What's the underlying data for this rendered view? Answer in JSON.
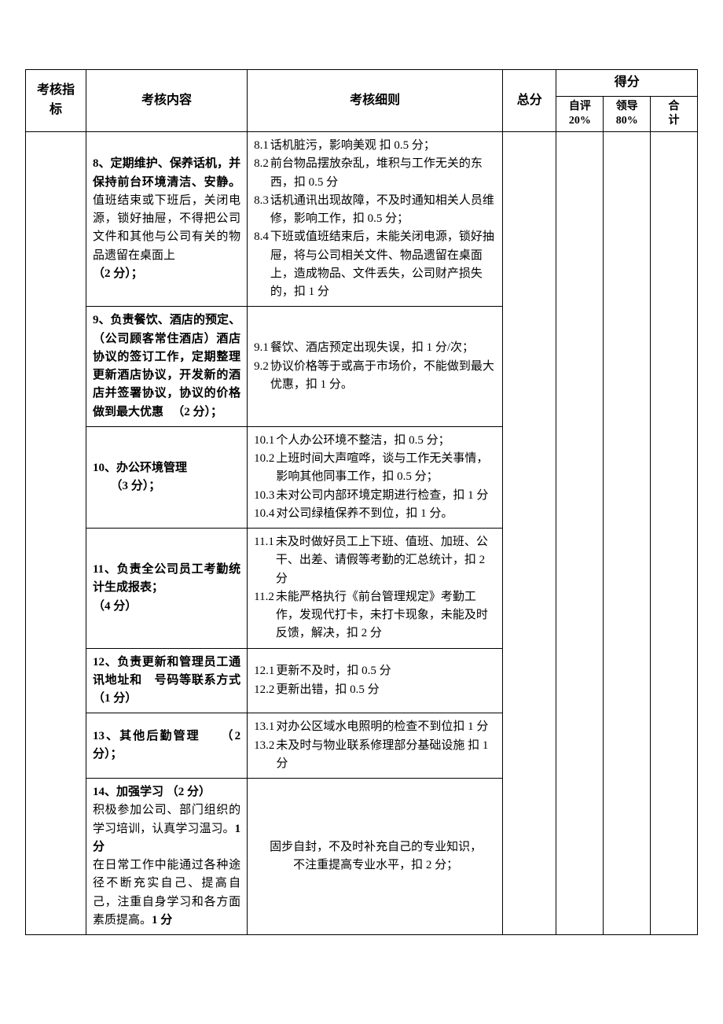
{
  "header": {
    "indicator": "考核指标",
    "content": "考核内容",
    "rules": "考核细则",
    "total": "总分",
    "score": "得分",
    "self": "自评 20%",
    "self_l1": "自评",
    "self_l2": "20%",
    "leader_l1": "领导",
    "leader_l2": "80%",
    "sum_l1": "合",
    "sum_l2": "计"
  },
  "rows": [
    {
      "content_html": "<span class='bold'>8、定期维护、保养话机，并保持前台环境清洁、安静。</span>值班结束或下班后，关闭电源，锁好抽屉，不得把公司文件和其他与公司有关的物品遗留在桌面上<br><span class='bold'>（2 分）；</span>",
      "rules": [
        {
          "n": "8.1",
          "t": "话机脏污，影响美观 扣 0.5 分；"
        },
        {
          "n": "8.2",
          "t": "前台物品摆放杂乱，堆积与工作无关的东西，扣 0.5 分"
        },
        {
          "n": "8.3",
          "t": "话机通讯出现故障，不及时通知相关人员维修，影响工作，扣 0.5 分；"
        },
        {
          "n": "8.4",
          "t": "下班或值班结束后，未能关闭电源，锁好抽屉，将与公司相关文件、物品遗留在桌面上，造成物品、文件丢失，公司财产损失的，扣 1 分"
        }
      ]
    },
    {
      "content_html": "<span class='bold'>9、负责餐饮、酒店的预定、（公司顾客常住酒店）酒店协议的签订工作，定期整理更新酒店协议，开发新的酒店并签署协议，协议的价格做到最大优惠 　（2 分）；</span>",
      "rules": [
        {
          "n": "9.1",
          "t": "餐饮、酒店预定出现失误，扣 1 分/次；"
        },
        {
          "n": "9.2",
          "t": "协议价格等于或高于市场价，不能做到最大优惠，扣 1 分。"
        }
      ]
    },
    {
      "content_html": "<span class='bold'>10、办公环境管理<br>　　（3 分）；</span>",
      "rules": [
        {
          "n": "10.1",
          "t": "个人办公环境不整洁，扣 0.5 分；"
        },
        {
          "n": "10.2",
          "t": "上班时间大声喧哗，谈与工作无关事情，影响其他同事工作，扣 0.5 分；"
        },
        {
          "n": "10.3",
          "t": "未对公司内部环境定期进行检查，扣 1 分"
        },
        {
          "n": "10.4",
          "t": "对公司绿植保养不到位，扣 1 分。"
        }
      ]
    },
    {
      "content_html": "<span class='bold'>11、负责全公司员工考勤统计生成报表；<br>（4 分）</span>",
      "rules": [
        {
          "n": "11.1",
          "t": "未及时做好员工上下班、值班、加班、公干、出差、请假等考勤的汇总统计，扣 2 分"
        },
        {
          "n": "11.2",
          "t": "未能严格执行《前台管理规定》考勤工作，发现代打卡，未打卡现象，未能及时反馈，解决，扣 2 分"
        }
      ]
    },
    {
      "content_html": "<span class='bold'>12、负责更新和管理员工通讯地址和　号码等联系方式（1 分）</span>",
      "rules": [
        {
          "n": "12.1",
          "t": "更新不及时，扣 0.5 分"
        },
        {
          "n": "12.2",
          "t": "更新出错，扣 0.5 分"
        }
      ]
    },
    {
      "content_html": "<span class='bold'>13、其他后勤管理　　（2 分）；</span>",
      "rules": [
        {
          "n": "13.1",
          "t": "对办公区域水电照明的检查不到位扣 1 分"
        },
        {
          "n": "13.2",
          "t": "未及时与物业联系修理部分基础设施 扣 1 分"
        }
      ]
    },
    {
      "content_html": "<span class='bold'>14、加强学习 （2 分）</span><br>积极参加公司、部门组织的学习培训，认真学习温习。<span class='bold'>1 分</span><br>在日常工作中能通过各种途径不断充实自己、提高自己，注重自身学习和各方面素质提高。<span class='bold'>1 分</span>",
      "rules_center": "固步自封，不及时补充自己的专业知识，<br>不注重提高专业水平，扣 2 分；"
    }
  ]
}
